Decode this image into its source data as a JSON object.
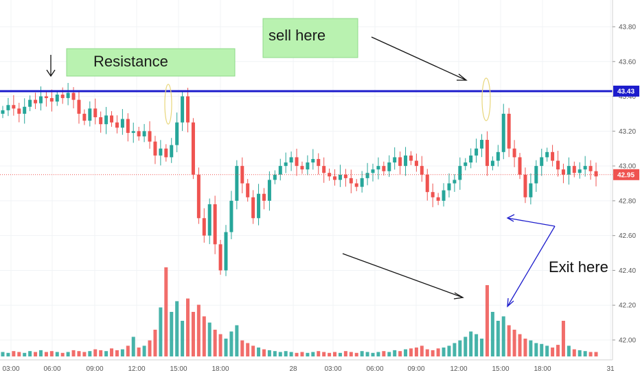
{
  "chart_data": {
    "type": "candlestick",
    "title": "",
    "price_axis": {
      "ticks": [
        "43.80",
        "43.60",
        "43.40",
        "43.20",
        "43.00",
        "42.80",
        "42.60",
        "42.40",
        "42.20",
        "42.00"
      ],
      "range": [
        41.95,
        43.86
      ]
    },
    "time_axis": {
      "ticks": [
        "03:00",
        "06:00",
        "09:00",
        "12:00",
        "15:00",
        "18:00",
        "28",
        "03:00",
        "06:00",
        "09:00",
        "12:00",
        "15:00",
        "18:00",
        "31"
      ]
    },
    "resistance_level": {
      "value": 43.43,
      "label": "43.43",
      "color": "#1c1ccc"
    },
    "current_price": {
      "value": 42.95,
      "label": "42.95",
      "color": "#ef5350"
    },
    "colors": {
      "up": "#26a69a",
      "down": "#ef5350",
      "line": "#1c1ccc",
      "note_box": "#b9f2b0"
    },
    "annotations": {
      "resistance": "Resistance",
      "sell": "sell here",
      "exit": "Exit here"
    },
    "series": {
      "price_path": [
        43.32,
        43.35,
        43.33,
        43.3,
        43.34,
        43.38,
        43.36,
        43.4,
        43.39,
        43.37,
        43.41,
        43.39,
        43.42,
        43.38,
        43.3,
        43.26,
        43.33,
        43.28,
        43.24,
        43.29,
        43.25,
        43.22,
        43.27,
        43.19,
        43.2,
        43.17,
        43.2,
        43.14,
        43.06,
        43.1,
        43.05,
        43.12,
        43.25,
        43.4,
        43.25,
        42.95,
        42.7,
        42.6,
        42.78,
        42.55,
        42.4,
        42.62,
        42.8,
        43.0,
        42.9,
        42.82,
        42.7,
        42.84,
        42.8,
        42.92,
        42.95,
        43.0,
        43.02,
        43.05,
        43.0,
        42.98,
        43.02,
        43.04,
        43.0,
        42.96,
        42.94,
        42.92,
        42.95,
        42.93,
        42.9,
        42.88,
        42.93,
        42.96,
        42.98,
        43.0,
        42.97,
        43.02,
        43.05,
        43.0,
        43.06,
        43.03,
        43.0,
        42.95,
        42.85,
        42.82,
        42.8,
        42.86,
        42.9,
        42.92,
        43.0,
        43.02,
        43.06,
        43.1,
        43.15,
        43.0,
        43.03,
        43.08,
        43.3,
        43.1,
        43.05,
        42.95,
        42.82,
        42.9,
        43.0,
        43.05,
        43.08,
        43.03,
        42.98,
        42.95,
        43.0,
        42.96,
        42.98,
        43.0,
        42.97,
        42.94
      ],
      "volume": [
        0.05,
        0.04,
        0.06,
        0.05,
        0.04,
        0.06,
        0.05,
        0.07,
        0.05,
        0.06,
        0.05,
        0.04,
        0.05,
        0.07,
        0.06,
        0.05,
        0.06,
        0.08,
        0.07,
        0.06,
        0.09,
        0.07,
        0.08,
        0.12,
        0.22,
        0.1,
        0.12,
        0.18,
        0.3,
        0.55,
        1.0,
        0.5,
        0.62,
        0.4,
        0.65,
        0.5,
        0.58,
        0.45,
        0.38,
        0.3,
        0.25,
        0.2,
        0.28,
        0.35,
        0.18,
        0.15,
        0.12,
        0.1,
        0.08,
        0.07,
        0.06,
        0.05,
        0.06,
        0.05,
        0.04,
        0.05,
        0.04,
        0.05,
        0.06,
        0.05,
        0.04,
        0.05,
        0.04,
        0.06,
        0.05,
        0.04,
        0.06,
        0.05,
        0.04,
        0.05,
        0.06,
        0.05,
        0.07,
        0.06,
        0.08,
        0.09,
        0.1,
        0.12,
        0.08,
        0.07,
        0.09,
        0.1,
        0.12,
        0.15,
        0.18,
        0.22,
        0.28,
        0.25,
        0.2,
        0.8,
        0.5,
        0.4,
        0.45,
        0.35,
        0.3,
        0.25,
        0.2,
        0.18,
        0.15,
        0.14,
        0.12,
        0.1,
        0.13,
        0.4,
        0.12,
        0.08,
        0.07,
        0.06,
        0.05,
        0.05
      ]
    }
  }
}
